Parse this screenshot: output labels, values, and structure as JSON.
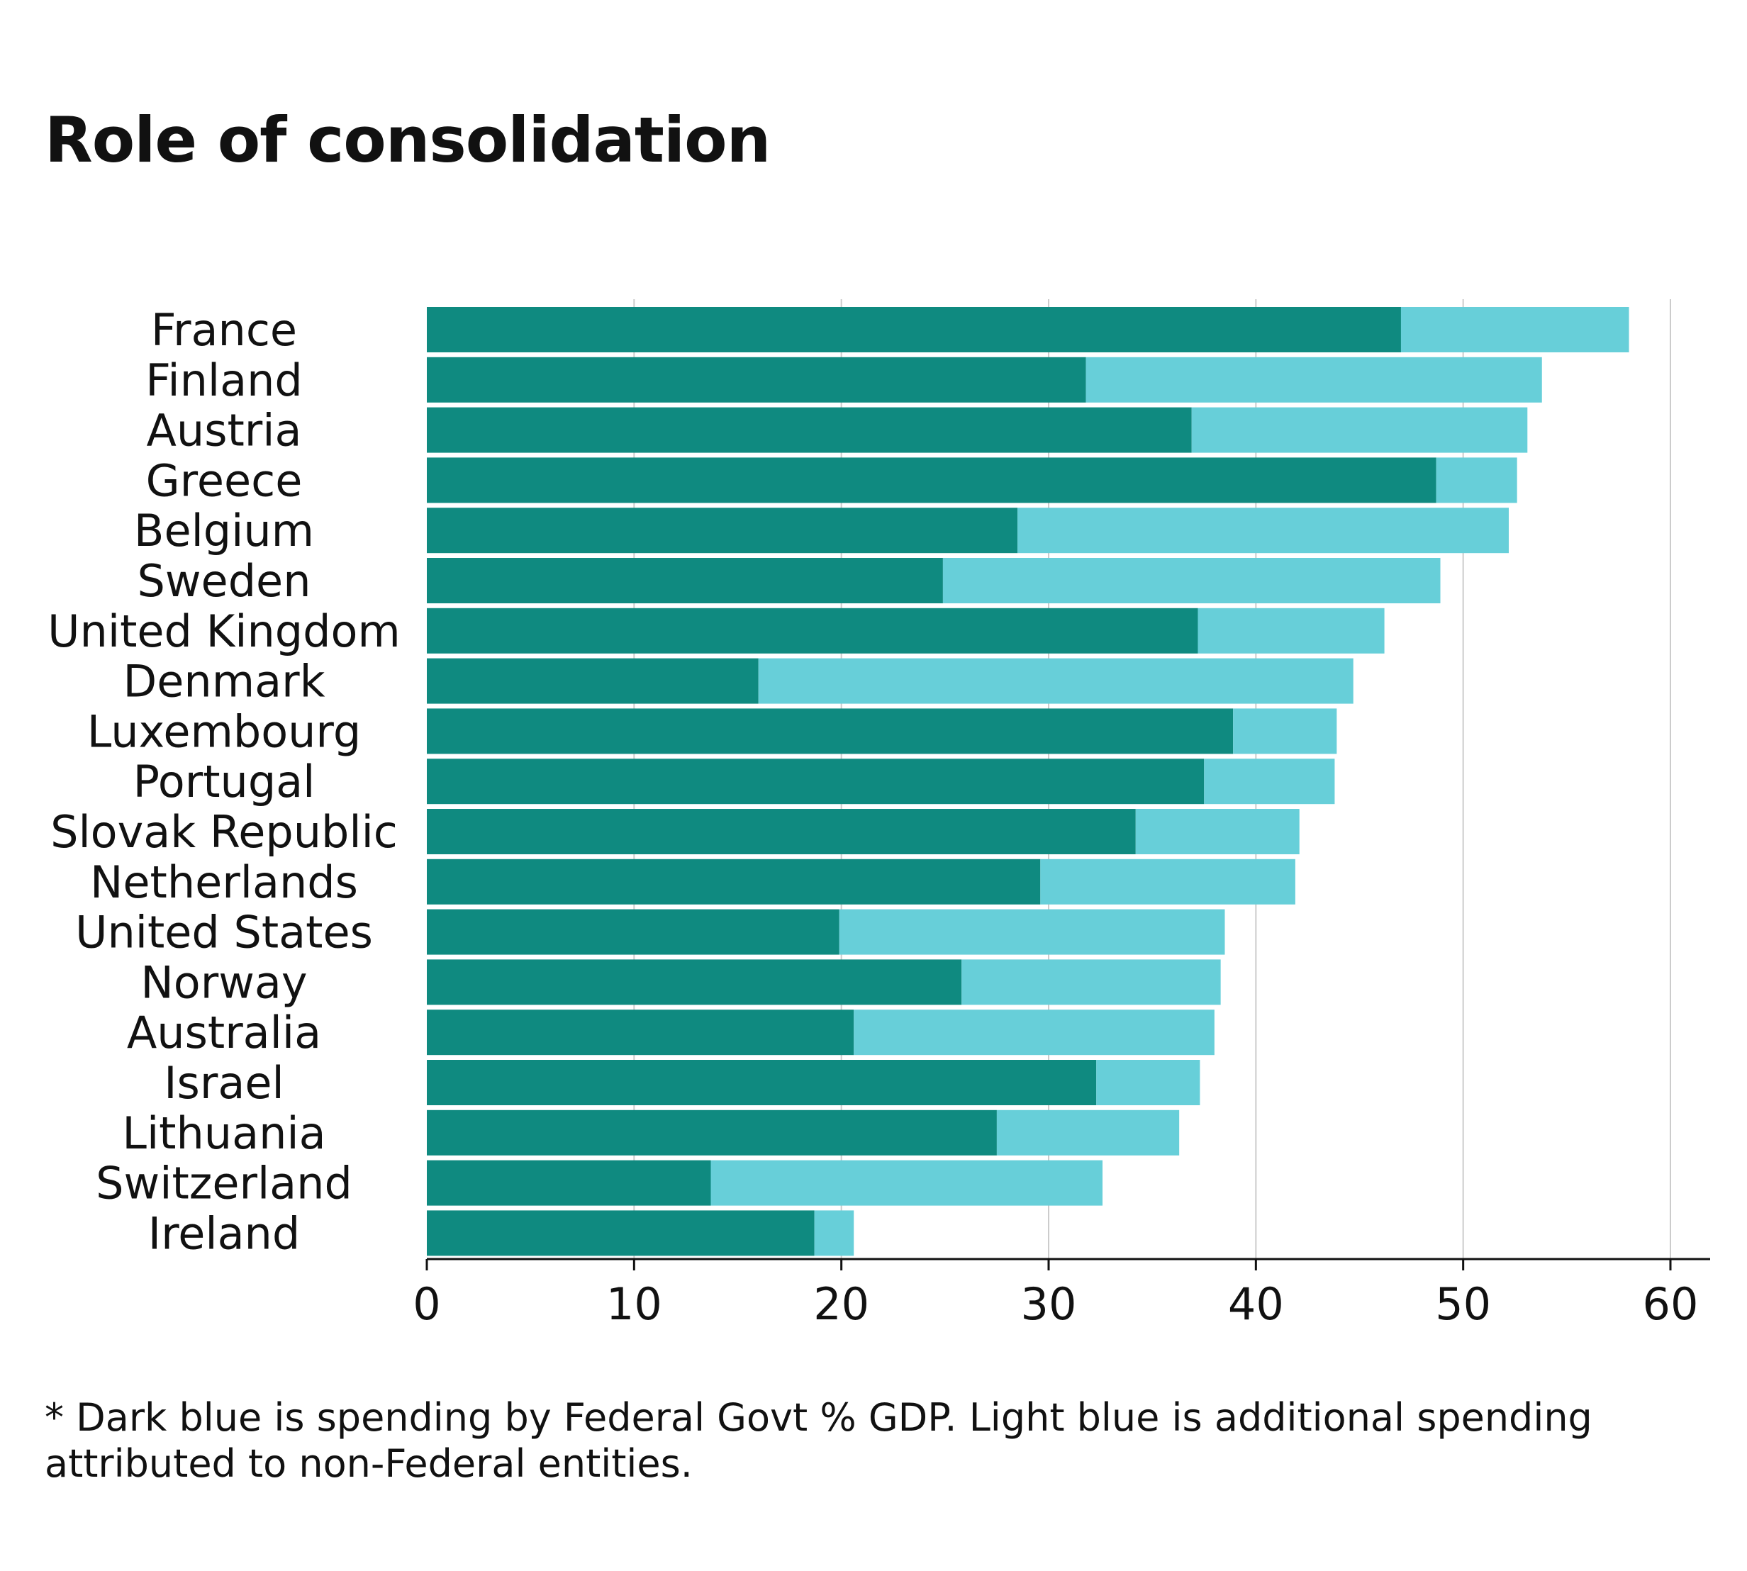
{
  "title": "Role of consolidation",
  "footnote": "* Dark blue is spending by Federal Govt % GDP. Light blue is additional spending attributed to non-Federal entities.",
  "colors": {
    "federal": "#0f8a80",
    "non_federal": "#67cfd9",
    "grid": "#cccccc",
    "axis": "#111111"
  },
  "chart_data": {
    "type": "bar",
    "orientation": "horizontal",
    "stacked": true,
    "title": "Role of consolidation",
    "xlim": [
      0,
      60
    ],
    "x_ticks": [
      0,
      10,
      20,
      30,
      40,
      50,
      60
    ],
    "grid": true,
    "categories": [
      "France",
      "Finland",
      "Austria",
      "Greece",
      "Belgium",
      "Sweden",
      "United Kingdom",
      "Denmark",
      "Luxembourg",
      "Portugal",
      "Slovak Republic",
      "Netherlands",
      "United States",
      "Norway",
      "Australia",
      "Israel",
      "Lithuania",
      "Switzerland",
      "Ireland"
    ],
    "series": [
      {
        "color": "#0f8a80",
        "values": [
          47.0,
          31.8,
          36.9,
          48.7,
          28.5,
          24.9,
          37.2,
          16.0,
          38.9,
          37.5,
          34.2,
          29.6,
          19.9,
          25.8,
          20.6,
          32.3,
          27.5,
          13.7,
          18.7
        ]
      },
      {
        "color": "#67cfd9",
        "values": [
          11.0,
          22.0,
          16.2,
          3.9,
          23.7,
          24.0,
          9.0,
          28.7,
          5.0,
          6.3,
          7.9,
          12.3,
          18.6,
          12.5,
          17.4,
          5.0,
          8.8,
          18.9,
          1.9
        ]
      }
    ]
  }
}
